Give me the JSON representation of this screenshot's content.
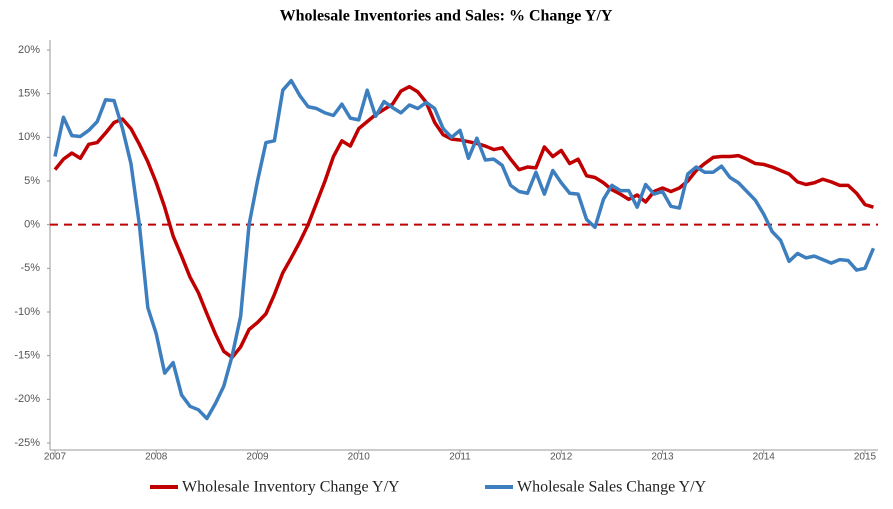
{
  "chart_data": {
    "type": "line",
    "title": "Wholesale Inventories and Sales: % Change Y/Y",
    "categories": [
      "2007",
      null,
      null,
      null,
      null,
      null,
      null,
      null,
      null,
      null,
      null,
      null,
      "2008",
      null,
      null,
      null,
      null,
      null,
      null,
      null,
      null,
      null,
      null,
      null,
      "2009",
      null,
      null,
      null,
      null,
      null,
      null,
      null,
      null,
      null,
      null,
      null,
      "2010",
      null,
      null,
      null,
      null,
      null,
      null,
      null,
      null,
      null,
      null,
      null,
      "2011",
      null,
      null,
      null,
      null,
      null,
      null,
      null,
      null,
      null,
      null,
      null,
      "2012",
      null,
      null,
      null,
      null,
      null,
      null,
      null,
      null,
      null,
      null,
      null,
      "2013",
      null,
      null,
      null,
      null,
      null,
      null,
      null,
      null,
      null,
      null,
      null,
      "2014",
      null,
      null,
      null,
      null,
      null,
      null,
      null,
      null,
      null,
      null,
      null,
      "2015",
      null
    ],
    "series": [
      {
        "name": "Wholesale Inventory Change Y/Y",
        "color": "#c00000",
        "values": [
          6.3,
          7.5,
          8.2,
          7.6,
          9.2,
          9.4,
          10.5,
          11.7,
          12.1,
          11.0,
          9.2,
          7.2,
          4.8,
          2.0,
          -1.3,
          -3.6,
          -6.0,
          -7.8,
          -10.2,
          -12.5,
          -14.5,
          -15.2,
          -14.0,
          -12.0,
          -11.2,
          -10.2,
          -8.0,
          -5.5,
          -3.8,
          -2.0,
          0.0,
          2.5,
          5.0,
          7.8,
          9.6,
          9.0,
          11.0,
          11.8,
          12.6,
          13.2,
          13.8,
          15.3,
          15.8,
          15.2,
          14.0,
          11.7,
          10.3,
          9.8,
          9.7,
          9.5,
          9.3,
          9.0,
          8.6,
          8.8,
          7.5,
          6.3,
          6.6,
          6.5,
          8.9,
          7.8,
          8.5,
          7.0,
          7.5,
          5.6,
          5.4,
          4.8,
          4.0,
          3.5,
          2.9,
          3.4,
          2.6,
          3.8,
          4.2,
          3.8,
          4.2,
          5.0,
          6.2,
          7.0,
          7.7,
          7.8,
          7.8,
          7.9,
          7.5,
          7.0,
          6.9,
          6.6,
          6.2,
          5.8,
          4.9,
          4.6,
          4.8,
          5.2,
          4.9,
          4.5,
          4.5,
          3.6,
          2.3,
          2.0
        ]
      },
      {
        "name": "Wholesale Sales Change Y/Y",
        "color": "#3d7ebf",
        "values": [
          7.8,
          12.3,
          10.2,
          10.1,
          10.8,
          11.8,
          14.3,
          14.2,
          11.0,
          7.0,
          0.0,
          -9.5,
          -12.5,
          -17.0,
          -15.8,
          -19.5,
          -20.8,
          -21.2,
          -22.2,
          -20.5,
          -18.5,
          -15.0,
          -10.5,
          0.0,
          5.0,
          9.4,
          9.6,
          15.4,
          16.5,
          14.8,
          13.5,
          13.3,
          12.8,
          12.5,
          13.8,
          12.2,
          12.0,
          15.4,
          12.4,
          14.1,
          13.4,
          12.8,
          13.7,
          13.3,
          14.0,
          13.3,
          11.0,
          10.0,
          10.8,
          7.6,
          9.9,
          7.4,
          7.5,
          6.8,
          4.5,
          3.8,
          3.6,
          6.0,
          3.5,
          6.2,
          4.8,
          3.6,
          3.5,
          0.6,
          -0.3,
          2.9,
          4.5,
          3.9,
          3.9,
          2.0,
          4.6,
          3.5,
          3.8,
          2.1,
          1.9,
          5.8,
          6.6,
          6.0,
          6.0,
          6.7,
          5.4,
          4.8,
          3.8,
          2.8,
          1.2,
          -0.8,
          -1.8,
          -4.2,
          -3.3,
          -3.8,
          -3.6,
          -4.0,
          -4.4,
          -4.0,
          -4.1,
          -5.2,
          -5.0,
          -2.7
        ]
      }
    ],
    "ylim": [
      -25,
      20
    ],
    "yticks": [
      {
        "value": -25,
        "label": "-25%"
      },
      {
        "value": -20,
        "label": "-20%"
      },
      {
        "value": -15,
        "label": "-15%"
      },
      {
        "value": -10,
        "label": "-10%"
      },
      {
        "value": -5,
        "label": "-5%"
      },
      {
        "value": 0,
        "label": "0%"
      },
      {
        "value": 5,
        "label": "5%"
      },
      {
        "value": 10,
        "label": "10%"
      },
      {
        "value": 15,
        "label": "15%"
      },
      {
        "value": 20,
        "label": "20%"
      }
    ],
    "reference_line": {
      "value": 0,
      "color": "#c00000"
    },
    "legend": "bottom"
  }
}
